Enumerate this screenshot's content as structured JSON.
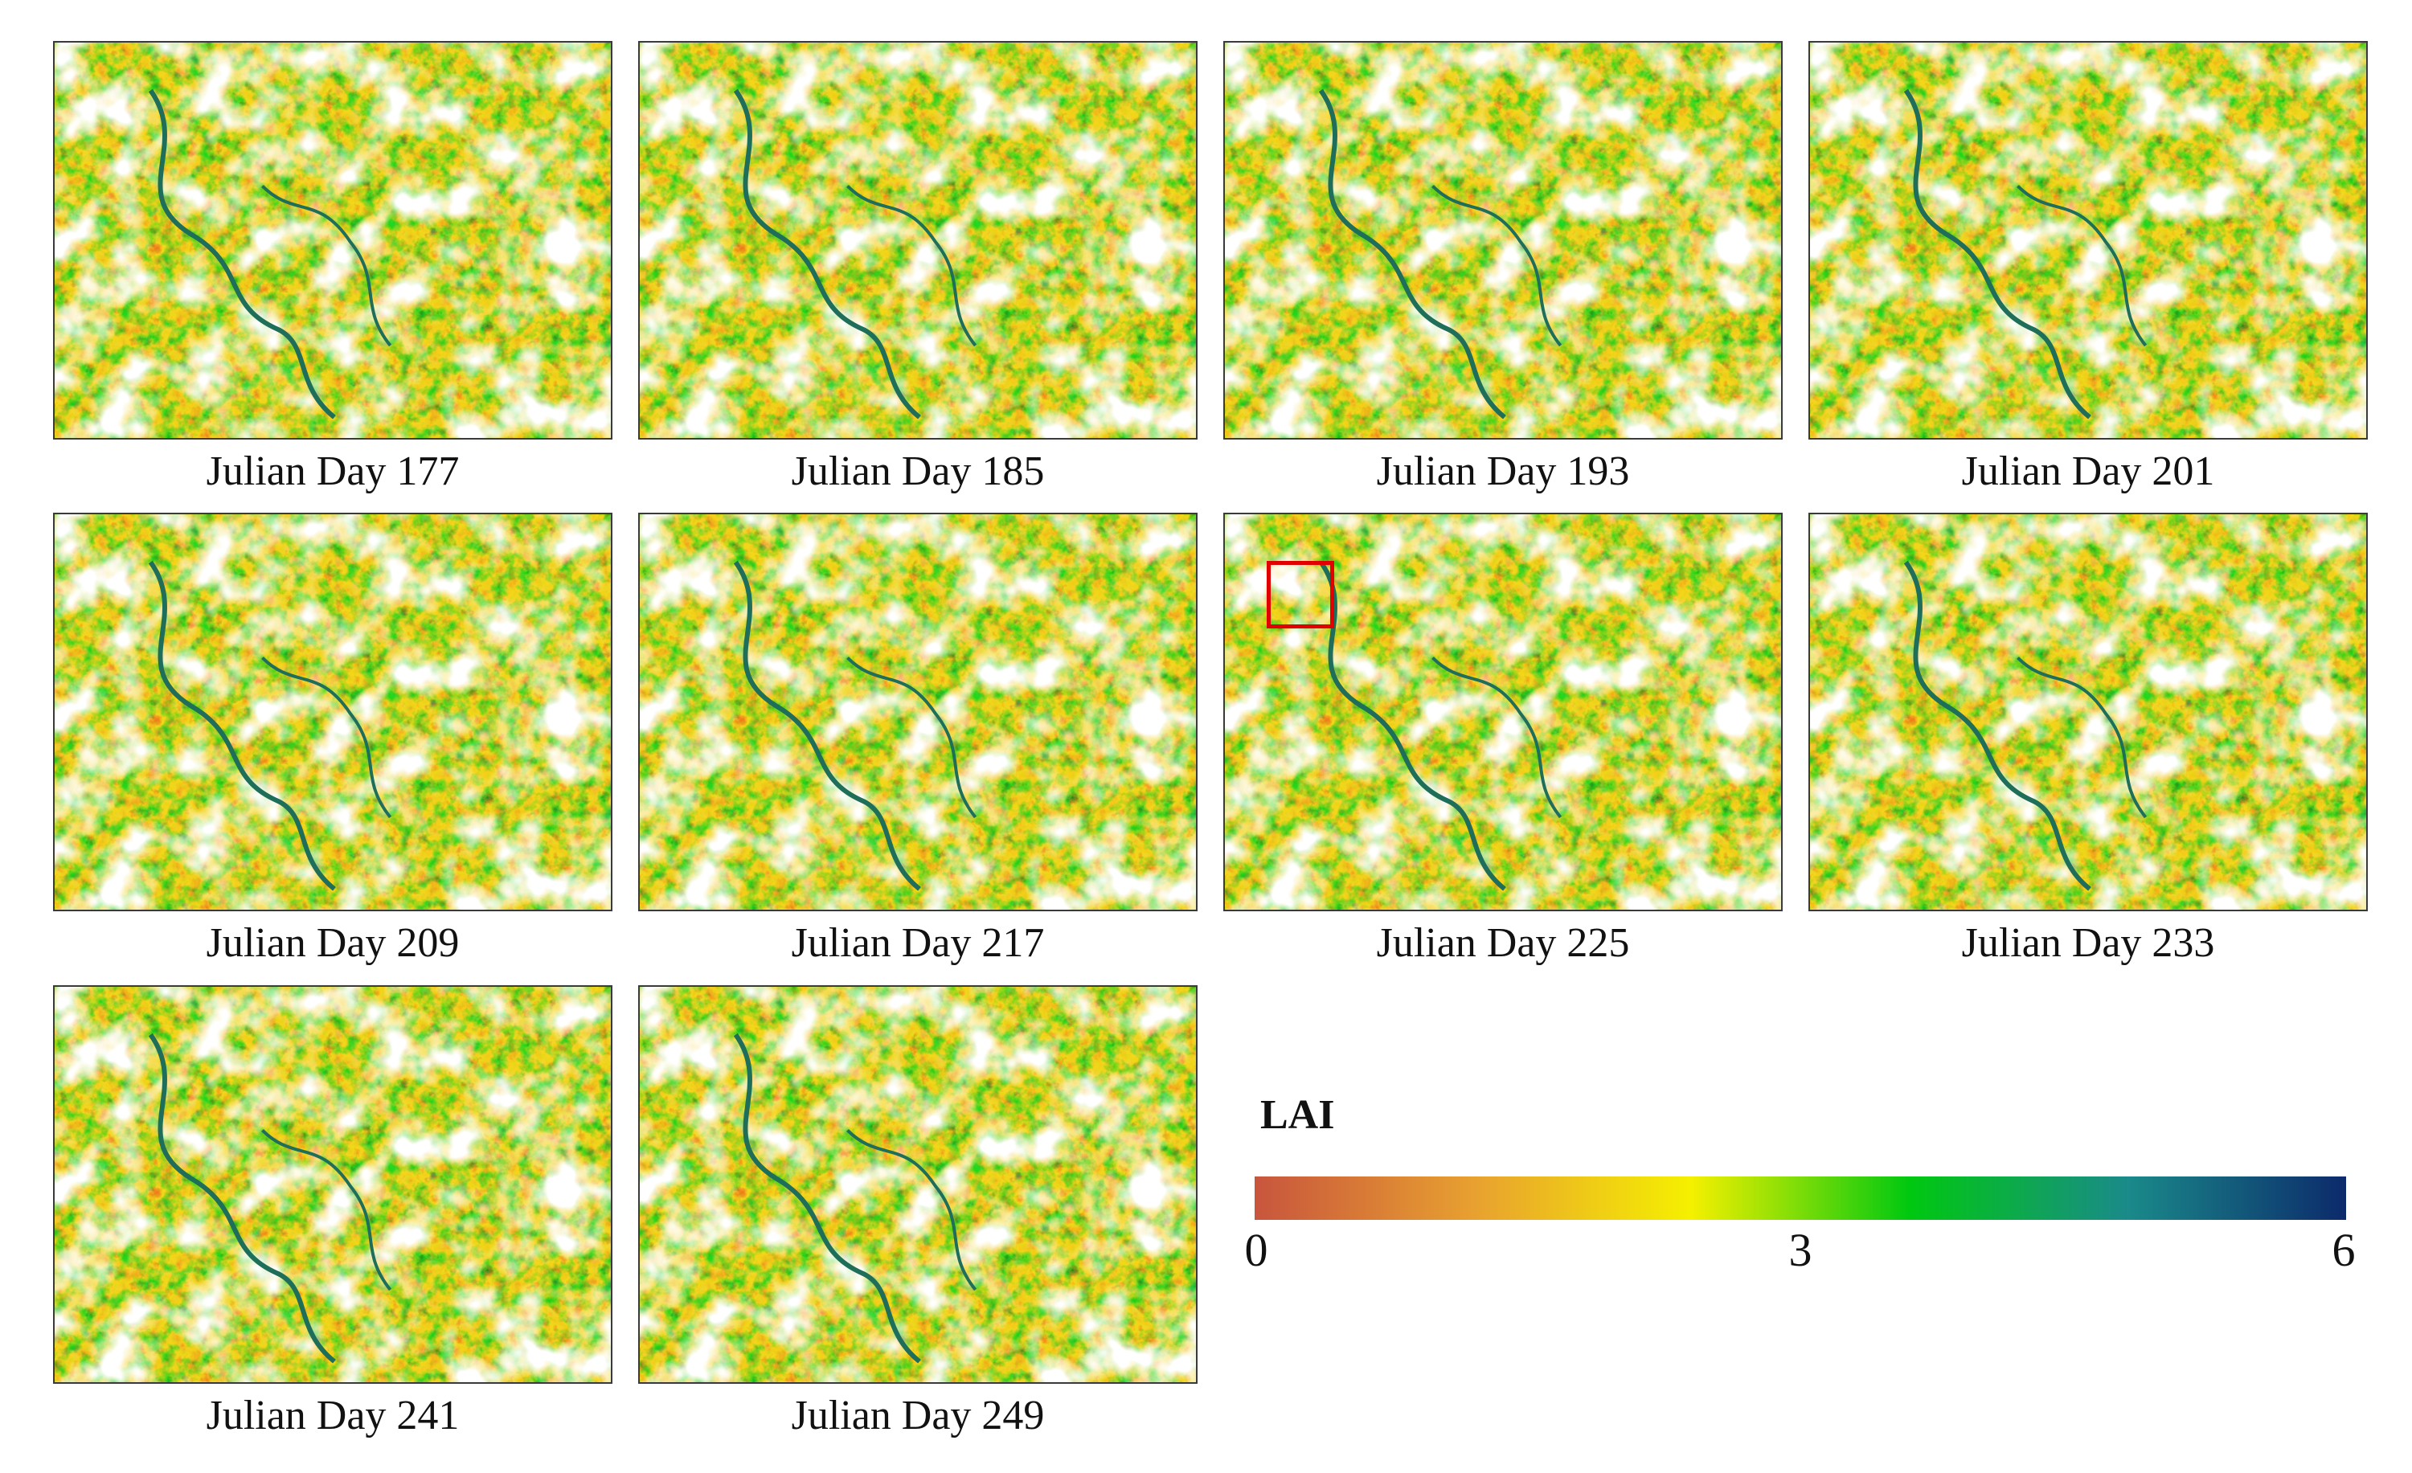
{
  "panels": [
    {
      "label": "Julian Day 177"
    },
    {
      "label": "Julian Day 185"
    },
    {
      "label": "Julian Day 193"
    },
    {
      "label": "Julian Day 201"
    },
    {
      "label": "Julian Day 209"
    },
    {
      "label": "Julian Day 217"
    },
    {
      "label": "Julian Day 225",
      "highlight_box": true,
      "highlight_color": "#e00000"
    },
    {
      "label": "Julian Day 233"
    },
    {
      "label": "Julian Day 241"
    },
    {
      "label": "Julian Day 249"
    }
  ],
  "legend": {
    "title": "LAI",
    "min": "0",
    "mid": "3",
    "max": "6",
    "colors": [
      "#c8553d",
      "#e8a030",
      "#f5f000",
      "#00c810",
      "#1a8a8a",
      "#0c2a6b"
    ]
  }
}
